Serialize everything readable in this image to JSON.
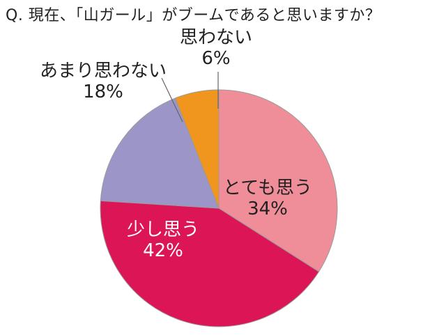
{
  "chart_data": {
    "type": "pie",
    "title": "Q. 現在、「山ガール」がブームであると思いますか？",
    "slices": [
      {
        "label": "とても思う",
        "value": 34,
        "value_label": "34%",
        "color": "#ef8e99",
        "text_color": "#222222",
        "label_position": "inside"
      },
      {
        "label": "少し思う",
        "value": 42,
        "value_label": "42%",
        "color": "#dc1556",
        "text_color": "#ffffff",
        "label_position": "inside"
      },
      {
        "label": "あまり思わない",
        "value": 18,
        "value_label": "18%",
        "color": "#9c96c8",
        "text_color": "#222222",
        "label_position": "outside"
      },
      {
        "label": "思わない",
        "value": 6,
        "value_label": "6%",
        "color": "#f0961e",
        "text_color": "#222222",
        "label_position": "outside"
      }
    ],
    "start_angle_deg": 0,
    "direction": "clockwise",
    "legend": "none"
  }
}
